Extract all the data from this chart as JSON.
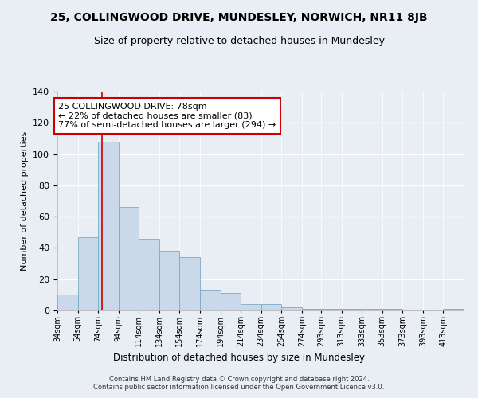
{
  "title": "25, COLLINGWOOD DRIVE, MUNDESLEY, NORWICH, NR11 8JB",
  "subtitle": "Size of property relative to detached houses in Mundesley",
  "xlabel": "Distribution of detached houses by size in Mundesley",
  "ylabel": "Number of detached properties",
  "footer1": "Contains HM Land Registry data © Crown copyright and database right 2024.",
  "footer2": "Contains public sector information licensed under the Open Government Licence v3.0.",
  "bin_edges": [
    34,
    54,
    74,
    94,
    114,
    134,
    154,
    174,
    194,
    214,
    234,
    254,
    274,
    293,
    313,
    333,
    353,
    373,
    393,
    413,
    433
  ],
  "bar_heights": [
    10,
    47,
    108,
    66,
    46,
    38,
    34,
    13,
    11,
    4,
    4,
    2,
    1,
    1,
    1,
    1,
    1,
    0,
    0,
    1
  ],
  "bar_color": "#c9d9ea",
  "bar_edge_color": "#7aaac8",
  "property_size": 78,
  "vline_color": "#cc0000",
  "annotation_text": "25 COLLINGWOOD DRIVE: 78sqm\n← 22% of detached houses are smaller (83)\n77% of semi-detached houses are larger (294) →",
  "annotation_box_color": "#ffffff",
  "annotation_box_edge_color": "#cc0000",
  "ylim": [
    0,
    140
  ],
  "yticks": [
    0,
    20,
    40,
    60,
    80,
    100,
    120,
    140
  ],
  "background_color": "#e8eef4",
  "plot_background_color": "#e8eef4",
  "grid_color": "#ffffff",
  "title_fontsize": 10,
  "subtitle_fontsize": 9,
  "tick_label_fontsize": 7,
  "ylabel_fontsize": 8,
  "annotation_fontsize": 8,
  "footer_fontsize": 6
}
